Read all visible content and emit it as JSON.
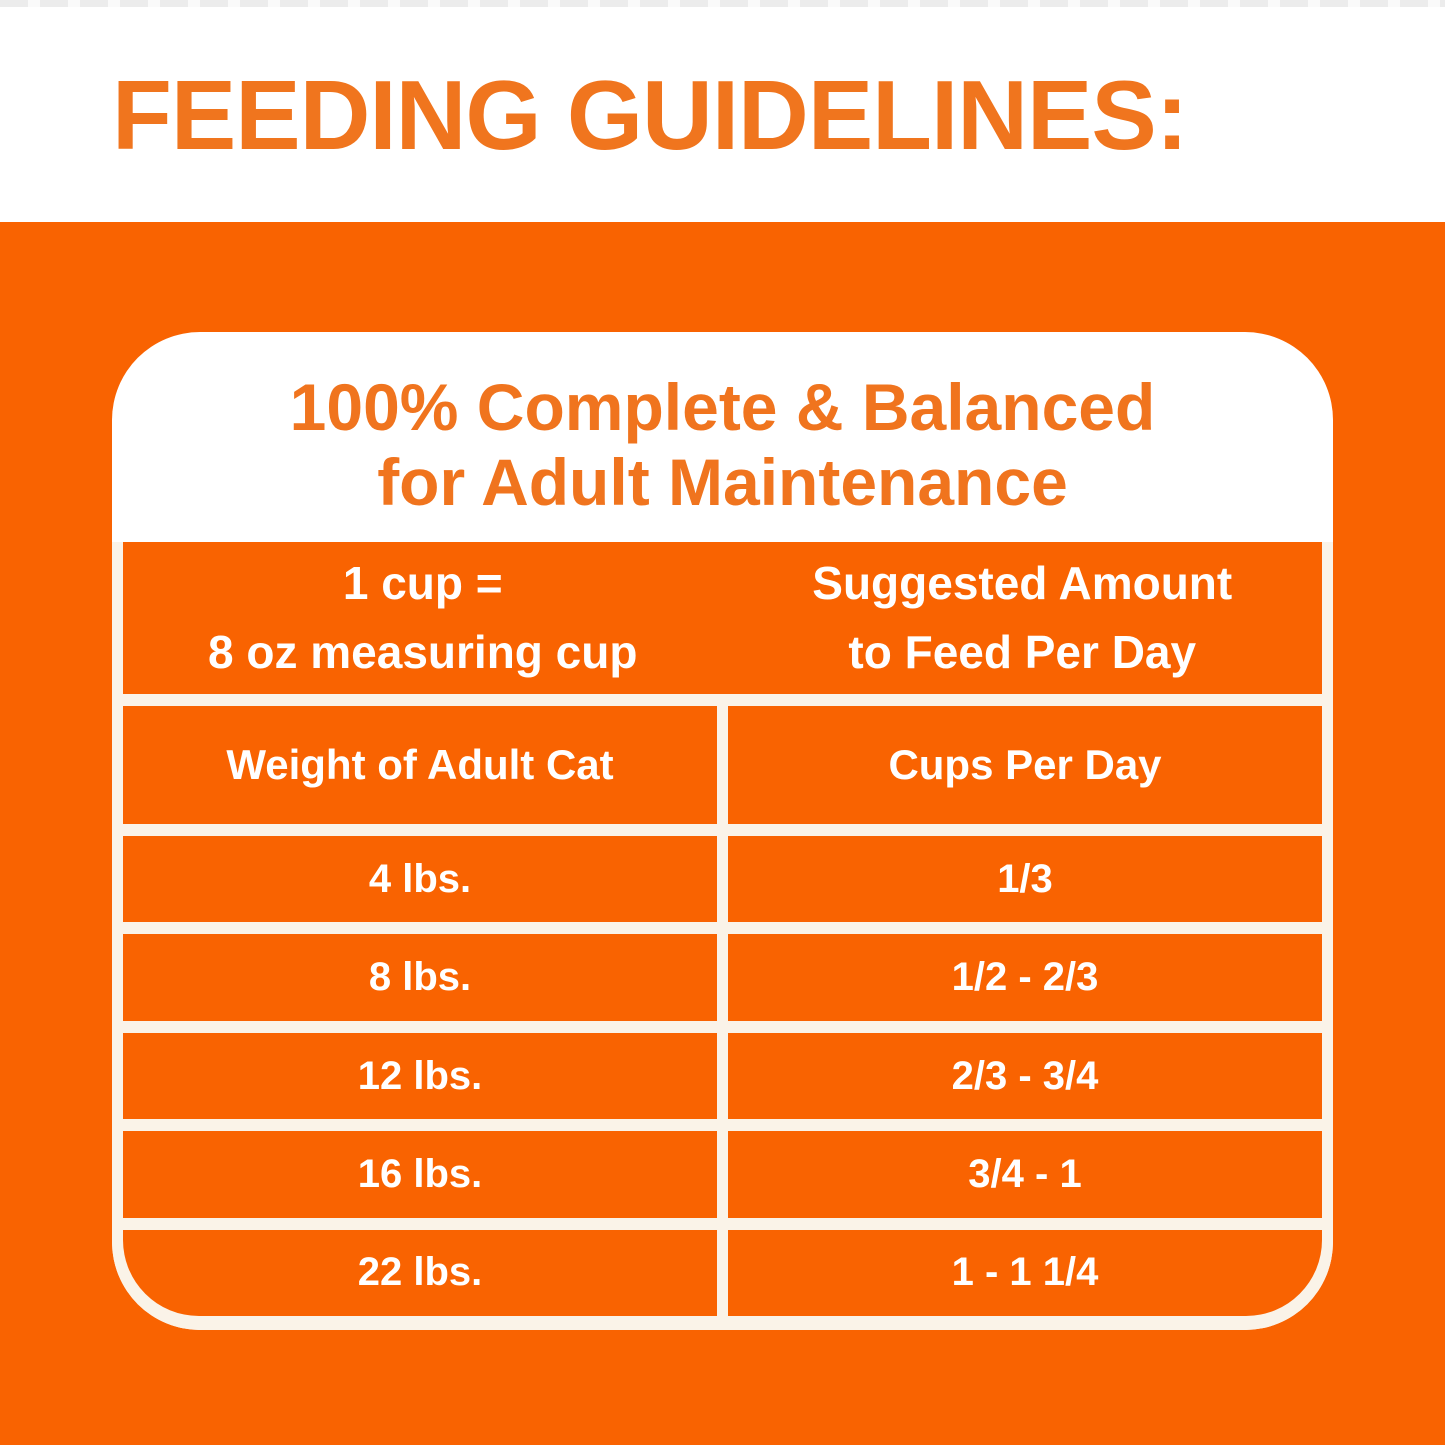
{
  "colors": {
    "background_orange": "#F96301",
    "heading_orange": "#F0751E",
    "gridline_cream": "#FAF3E8",
    "panel_white": "#FFFFFF",
    "table_text_white": "#FFFFFF"
  },
  "header": {
    "title": "FEEDING GUIDELINES:"
  },
  "panel": {
    "title_line1": "100% Complete & Balanced",
    "title_line2": "for Adult Maintenance"
  },
  "table": {
    "col1_header": {
      "line1": "1 cup =",
      "line2": "8 oz measuring cup"
    },
    "col2_header": {
      "line1": "Suggested Amount",
      "line2": "to Feed Per Day"
    },
    "columns": [
      "Weight of Adult Cat",
      "Cups Per Day"
    ],
    "rows": [
      {
        "weight": "4 lbs.",
        "cups": "1/3"
      },
      {
        "weight": "8 lbs.",
        "cups": "1/2 - 2/3"
      },
      {
        "weight": "12 lbs.",
        "cups": "2/3 - 3/4"
      },
      {
        "weight": "16 lbs.",
        "cups": "3/4 - 1"
      },
      {
        "weight": "22 lbs.",
        "cups": "1 - 1 1/4"
      }
    ]
  }
}
